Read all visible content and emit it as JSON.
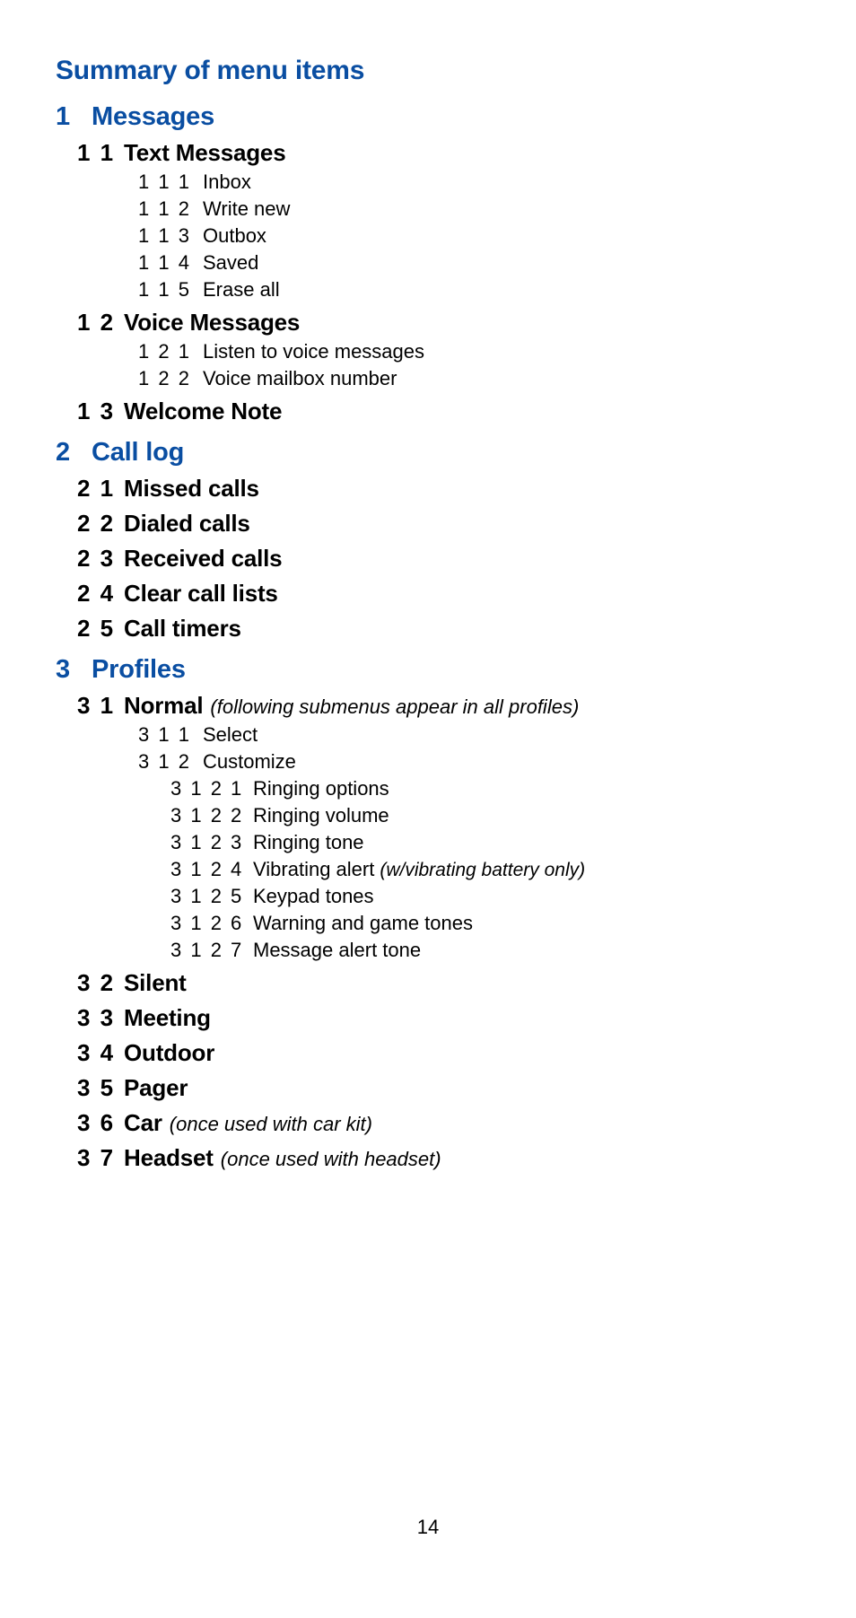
{
  "colors": {
    "accent": "#0a4ea2",
    "text": "#000000",
    "bg": "#ffffff"
  },
  "fonts": {
    "title_size": 30,
    "section_size": 29,
    "sub_size": 26,
    "leaf_size": 22,
    "note_size": 22,
    "page_num_size": 22,
    "family": "Helvetica Neue"
  },
  "page_number": "14",
  "title": "Summary of menu items",
  "sections": [
    {
      "num": "1",
      "label": "Messages",
      "subs": [
        {
          "num": "1 1",
          "label": "Text Messages",
          "leaves": [
            {
              "num": "1 1 1",
              "label": "Inbox"
            },
            {
              "num": "1 1 2",
              "label": "Write new"
            },
            {
              "num": "1 1 3",
              "label": "Outbox"
            },
            {
              "num": "1 1 4",
              "label": "Saved"
            },
            {
              "num": "1 1 5",
              "label": "Erase all"
            }
          ]
        },
        {
          "num": "1 2",
          "label": "Voice Messages",
          "leaves": [
            {
              "num": "1 2 1",
              "label": "Listen to voice messages"
            },
            {
              "num": "1 2 2",
              "label": "Voice mailbox number"
            }
          ]
        },
        {
          "num": "1 3",
          "label": "Welcome Note"
        }
      ]
    },
    {
      "num": "2",
      "label": "Call log",
      "subs": [
        {
          "num": "2 1",
          "label": "Missed calls"
        },
        {
          "num": "2 2",
          "label": "Dialed calls"
        },
        {
          "num": "2 3",
          "label": "Received calls"
        },
        {
          "num": "2 4",
          "label": "Clear call lists"
        },
        {
          "num": "2 5",
          "label": "Call timers"
        }
      ]
    },
    {
      "num": "3",
      "label": "Profiles",
      "subs": [
        {
          "num": "3 1",
          "label": "Normal",
          "note": "(following submenus appear in all profiles)",
          "leaves": [
            {
              "num": "3 1 1",
              "label": "Select"
            },
            {
              "num": "3 1 2",
              "label": "Customize",
              "leaves2": [
                {
                  "num": "3 1 2 1",
                  "label": "Ringing options"
                },
                {
                  "num": "3 1 2 2",
                  "label": "Ringing volume"
                },
                {
                  "num": "3 1 2 3",
                  "label": "Ringing tone"
                },
                {
                  "num": "3 1 2 4",
                  "label": "Vibrating alert",
                  "note": "(w/vibrating battery only)"
                },
                {
                  "num": "3 1 2 5",
                  "label": "Keypad tones"
                },
                {
                  "num": "3 1 2 6",
                  "label": "Warning and game tones"
                },
                {
                  "num": "3 1 2 7",
                  "label": "Message alert tone"
                }
              ]
            }
          ]
        },
        {
          "num": "3 2",
          "label": "Silent"
        },
        {
          "num": "3 3",
          "label": "Meeting"
        },
        {
          "num": "3 4",
          "label": "Outdoor"
        },
        {
          "num": "3 5",
          "label": "Pager"
        },
        {
          "num": "3 6",
          "label": "Car",
          "note": "(once used with car kit)"
        },
        {
          "num": "3 7",
          "label": "Headset",
          "note": "(once used with headset)"
        }
      ]
    }
  ]
}
